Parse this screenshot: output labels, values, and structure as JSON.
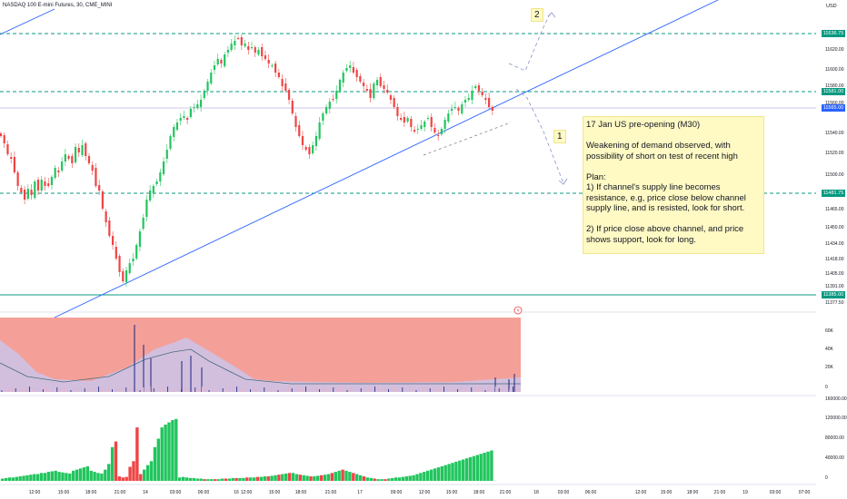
{
  "header": {
    "symbol_title": "NASDAQ 100 E-mini Futures, 30, CME_MINI",
    "currency": "USD"
  },
  "note": {
    "heading": "17 Jan US pre-opening (M30)",
    "line1": "Weakening of demand observed, with possibility of short on test of recent high",
    "plan_title": "Plan:",
    "plan1": "1) If channel's supply line becomes resistance, e.g, price close below channel supply line, and is resisted, look for short.",
    "plan2": "2) If price close above channel, and price shows support, look for long."
  },
  "scenario_labels": {
    "one": "1",
    "two": "2"
  },
  "price_axis": {
    "ticks": [
      "11620.00",
      "11600.00",
      "11580.00",
      "11560.00",
      "11540.00",
      "11520.00",
      "11500.00",
      "11480.00",
      "11465.00",
      "11450.00",
      "11434.00",
      "11418.00",
      "11405.00",
      "11391.00",
      "11377.50"
    ],
    "badges": [
      {
        "label": "11636.75",
        "color": "#089981"
      },
      {
        "label": "11581.00",
        "color": "#089981"
      },
      {
        "label": "11565.00",
        "color": "#2962ff"
      },
      {
        "label": "11481.75",
        "color": "#089981"
      },
      {
        "label": "11385.00",
        "color": "#089981"
      }
    ]
  },
  "indicator_axis": {
    "ticks": [
      "60K",
      "40K",
      "20K",
      "0"
    ]
  },
  "volume_axis": {
    "ticks": [
      "160000.00",
      "120000.00",
      "80000.00",
      "40000.00",
      "0"
    ]
  },
  "time_axis": {
    "ticks": [
      "12:00",
      "15:00",
      "18:00",
      "21:00",
      "14",
      "03:00",
      "06:00",
      "16",
      "12:00",
      "15:00",
      "18:00",
      "21:00",
      "17",
      "09:00",
      "12:00",
      "15:00",
      "18:00",
      "21:00",
      "18",
      "03:00",
      "06:00",
      "12:00",
      "15:00",
      "18:00",
      "21:00",
      "19",
      "03:00",
      "07:00"
    ]
  },
  "colors": {
    "up": "#22c55e",
    "down": "#ef4444",
    "level_line": "#089981",
    "channel": "#2962ff",
    "current_price": "#d1c4e9",
    "indicator_bg": "#f4a098"
  },
  "icons": {
    "alert": "lightning-icon"
  }
}
